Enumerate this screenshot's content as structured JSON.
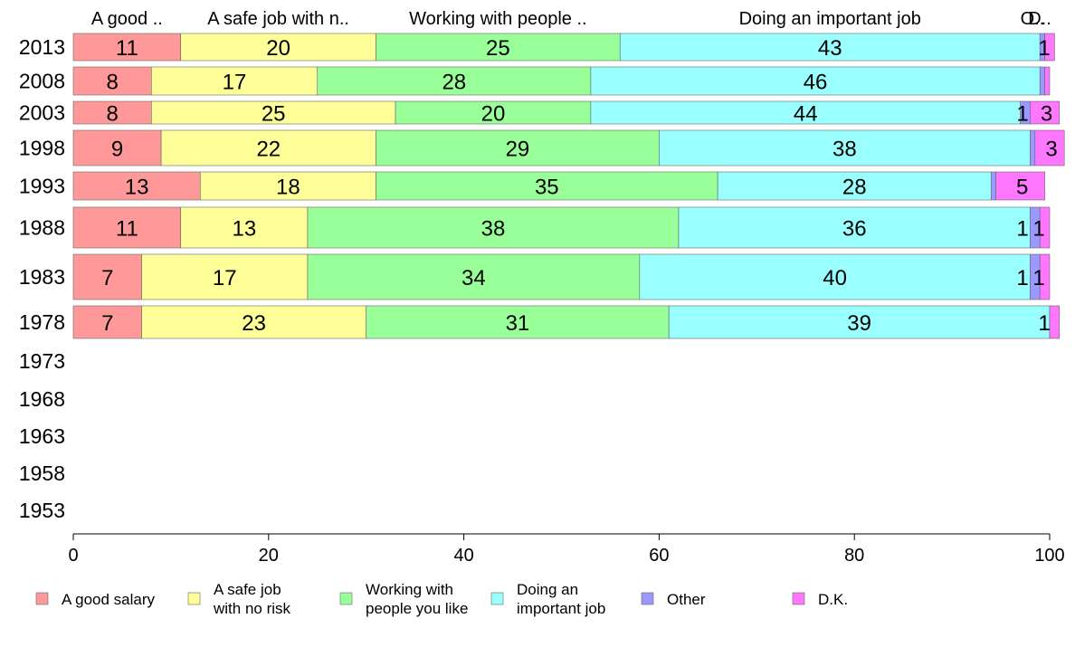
{
  "chart_data": {
    "type": "bar",
    "orientation": "horizontal",
    "stacked": true,
    "categories": [
      "2013",
      "2008",
      "2003",
      "1998",
      "1993",
      "1988",
      "1983",
      "1978",
      "1973",
      "1968",
      "1963",
      "1958",
      "1953"
    ],
    "series": [
      {
        "name": "A good salary",
        "color": "#ff9999",
        "values": [
          11,
          8,
          8,
          9,
          13,
          11,
          7,
          7,
          null,
          null,
          null,
          null,
          null
        ]
      },
      {
        "name": "A safe job with no risk",
        "color": "#ffff99",
        "values": [
          20,
          17,
          25,
          22,
          18,
          13,
          17,
          23,
          null,
          null,
          null,
          null,
          null
        ]
      },
      {
        "name": "Working with people you like",
        "color": "#99ff99",
        "values": [
          25,
          28,
          20,
          29,
          35,
          38,
          34,
          31,
          null,
          null,
          null,
          null,
          null
        ]
      },
      {
        "name": "Doing an important job",
        "color": "#99ffff",
        "values": [
          43,
          46,
          44,
          38,
          28,
          36,
          40,
          39,
          null,
          null,
          null,
          null,
          null
        ]
      },
      {
        "name": "Other",
        "color": "#9999ff",
        "values": [
          0.5,
          0.5,
          1,
          0.5,
          0.5,
          1,
          1,
          0,
          null,
          null,
          null,
          null,
          null
        ]
      },
      {
        "name": "D.K.",
        "color": "#ff77ff",
        "values": [
          1,
          0.5,
          3,
          3,
          5,
          1,
          1,
          1,
          null,
          null,
          null,
          null,
          null
        ]
      }
    ],
    "data_labels": [
      [
        "11",
        "20",
        "25",
        "43",
        "",
        "1"
      ],
      [
        "8",
        "17",
        "28",
        "46",
        "",
        ""
      ],
      [
        "8",
        "25",
        "20",
        "44",
        "1",
        "3"
      ],
      [
        "9",
        "22",
        "29",
        "38",
        "",
        "3"
      ],
      [
        "13",
        "18",
        "35",
        "28",
        "",
        "5"
      ],
      [
        "11",
        "13",
        "38",
        "36",
        "1",
        "1"
      ],
      [
        "7",
        "17",
        "34",
        "40",
        "1",
        "1"
      ],
      [
        "7",
        "23",
        "31",
        "39",
        "",
        "1"
      ]
    ],
    "top_labels": [
      "A good ..",
      "A safe job with n..",
      "Working with people ..",
      "Doing an important job",
      "O..",
      "D.."
    ],
    "xlim": [
      0,
      100
    ],
    "x_ticks": [
      "0",
      "20",
      "40",
      "60",
      "80",
      "100"
    ],
    "legend": {
      "placement": "bottom",
      "entries": [
        {
          "lines": [
            "A good salary"
          ],
          "color": "#ff9999"
        },
        {
          "lines": [
            "A safe job",
            "with no risk"
          ],
          "color": "#ffff99"
        },
        {
          "lines": [
            "Working with",
            "people you like"
          ],
          "color": "#99ff99"
        },
        {
          "lines": [
            "Doing an",
            "important job"
          ],
          "color": "#99ffff"
        },
        {
          "lines": [
            "Other"
          ],
          "color": "#9999ff"
        },
        {
          "lines": [
            "D.K."
          ],
          "color": "#ff77ff"
        }
      ]
    },
    "grid": false
  }
}
